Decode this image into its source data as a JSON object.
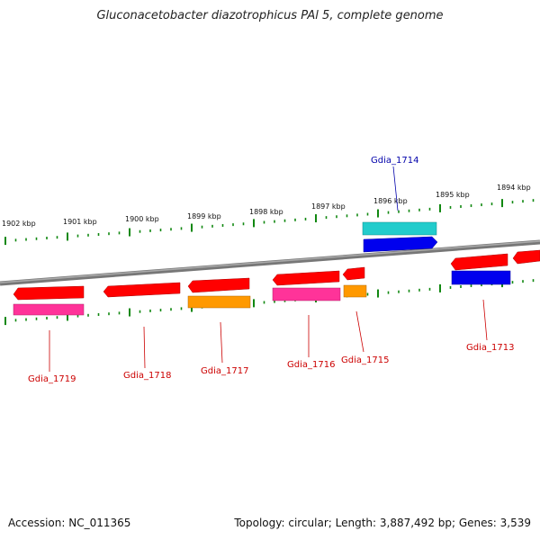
{
  "title": "Gluconacetobacter diazotrophicus PAl 5, complete genome",
  "footer": {
    "accession": "Accession: NC_011365",
    "summary": "Topology: circular; Length: 3,887,492 bp; Genes: 3,539"
  },
  "scale_labels": [
    "1902 kbp",
    "1901 kbp",
    "1900 kbp",
    "1899 kbp",
    "1898 kbp",
    "1897 kbp",
    "1896 kbp",
    "1895 kbp",
    "1894 kbp"
  ],
  "genes": [
    {
      "name": "Gdia_1719"
    },
    {
      "name": "Gdia_1718"
    },
    {
      "name": "Gdia_1717"
    },
    {
      "name": "Gdia_1716"
    },
    {
      "name": "Gdia_1715"
    },
    {
      "name": "Gdia_1714"
    },
    {
      "name": "Gdia_1713"
    }
  ],
  "colors": {
    "red": "#ff0000",
    "magenta": "#ff3399",
    "orange": "#ff9900",
    "cyan": "#22cccc",
    "blue": "#0000ee",
    "backbone": "#888888",
    "tick": "#118811"
  }
}
